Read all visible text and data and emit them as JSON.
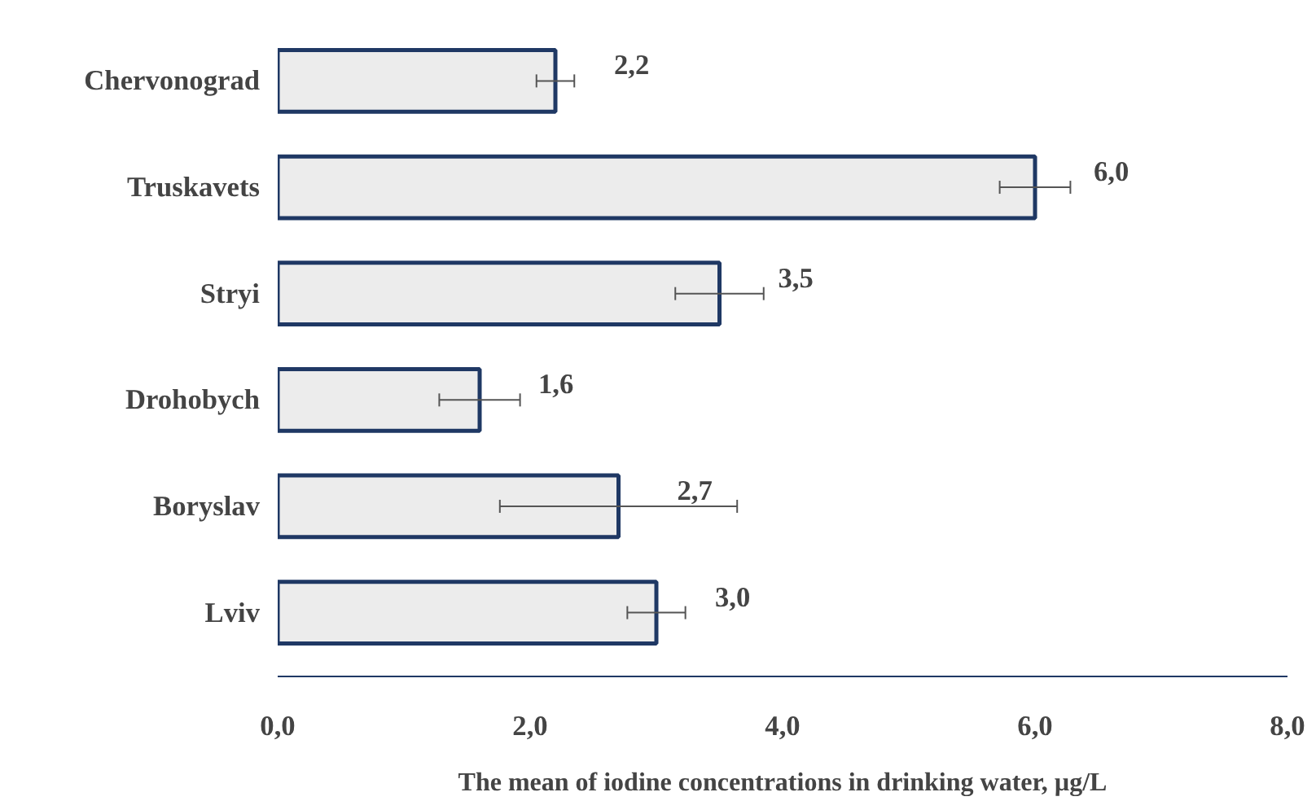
{
  "chart_data": {
    "type": "bar",
    "orientation": "horizontal",
    "xlabel": "The mean of iodine concentrations in drinking water, µg/L",
    "categories": [
      "Chervonograd",
      "Truskavets",
      "Stryi",
      "Drohobych",
      "Boryslav",
      "Lviv"
    ],
    "values": [
      2.2,
      6.0,
      3.5,
      1.6,
      2.7,
      3.0
    ],
    "errors": [
      0.15,
      0.28,
      0.35,
      0.32,
      0.94,
      0.23
    ],
    "value_labels": [
      "2,2",
      "6,0",
      "3,5",
      "1,6",
      "2,7",
      "3,0"
    ],
    "color": "#ececec",
    "xlim": [
      0,
      8
    ],
    "xticks": [
      {
        "value": 0,
        "label": "0,0"
      },
      {
        "value": 2,
        "label": "2,0"
      },
      {
        "value": 4,
        "label": "4,0"
      },
      {
        "value": 6,
        "label": "6,0"
      },
      {
        "value": 8,
        "label": "8,0"
      }
    ],
    "grid": false
  }
}
